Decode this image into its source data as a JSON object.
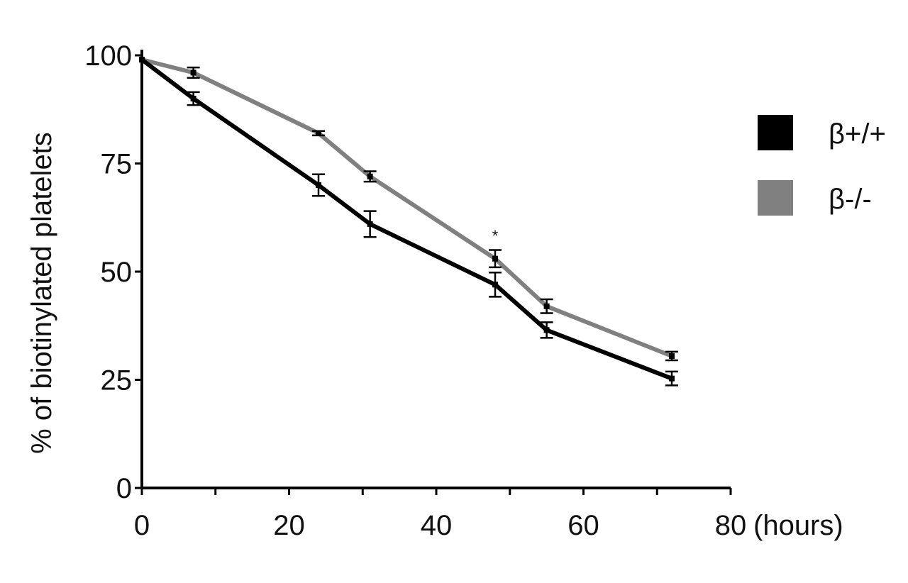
{
  "chart_data": {
    "type": "line",
    "title": "",
    "xlabel": "(hours)",
    "ylabel": "% of biotinylated platelets",
    "xlim": [
      0,
      80
    ],
    "ylim": [
      0,
      100
    ],
    "x_ticks": [
      0,
      20,
      40,
      60,
      80
    ],
    "y_ticks": [
      0,
      25,
      50,
      75,
      100
    ],
    "grid": false,
    "legend_position": "right",
    "series": [
      {
        "name": "β+/+",
        "color": "#000000",
        "x": [
          0,
          7,
          24,
          31,
          48,
          55,
          72
        ],
        "y": [
          99,
          90,
          70,
          61,
          47,
          36.5,
          25.3
        ],
        "error": [
          0,
          1.5,
          2.5,
          3,
          2.8,
          1.8,
          1.6
        ]
      },
      {
        "name": "β-/-",
        "color": "#808080",
        "x": [
          0,
          7,
          24,
          31,
          48,
          55,
          72
        ],
        "y": [
          99,
          96,
          82,
          72,
          53,
          42,
          30.5
        ],
        "error": [
          0,
          1.2,
          0.5,
          1.2,
          2.0,
          1.6,
          1.0
        ]
      }
    ],
    "annotations": [
      {
        "text": "*",
        "x": 48,
        "y": 59
      }
    ]
  }
}
